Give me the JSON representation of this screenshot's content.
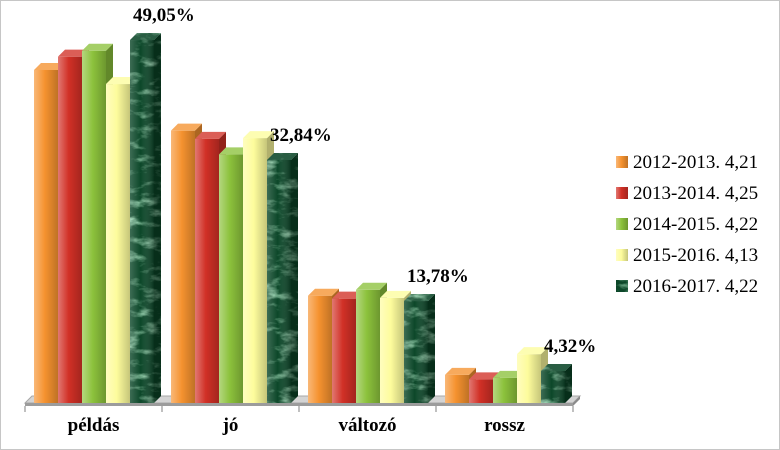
{
  "chart_data": {
    "type": "bar",
    "categories": [
      "példás",
      "jó",
      "változó",
      "rossz"
    ],
    "series": [
      {
        "name": "2012-2013. 4,21",
        "color": "#f5922f",
        "values": [
          45.0,
          36.8,
          14.5,
          3.8
        ]
      },
      {
        "name": "2013-2014. 4,25",
        "color": "#d13026",
        "values": [
          46.8,
          35.7,
          14.1,
          3.2
        ]
      },
      {
        "name": "2014-2015. 4,22",
        "color": "#8cc23c",
        "values": [
          47.6,
          33.6,
          15.3,
          3.4
        ]
      },
      {
        "name": "2015-2016. 4,13",
        "color": "#fdfc9c",
        "values": [
          43.1,
          35.8,
          14.2,
          6.6
        ]
      },
      {
        "name": "2016-2017. 4,22",
        "color": "#0f4f2d",
        "values": [
          49.05,
          32.84,
          13.78,
          4.32
        ],
        "labels": [
          "49,05%",
          "32,84%",
          "13,78%",
          "4,32%"
        ]
      }
    ],
    "ylim": [
      0,
      50
    ],
    "grid": false,
    "legend": "right"
  }
}
